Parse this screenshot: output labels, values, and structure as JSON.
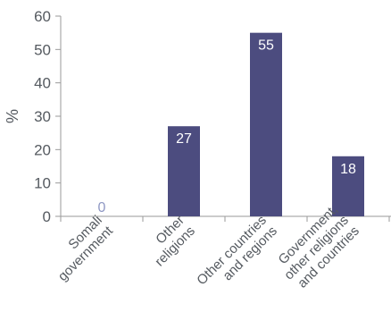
{
  "chart_data": {
    "type": "bar",
    "categories": [
      [
        "Somali",
        "government"
      ],
      [
        "Other",
        "religions"
      ],
      [
        "Other countries",
        "and regions"
      ],
      [
        "Government,",
        "other religions",
        "and countries"
      ]
    ],
    "values": [
      0,
      27,
      55,
      18
    ],
    "data_labels": [
      "0",
      "27",
      "55",
      "18"
    ],
    "ylabel": "%",
    "ylim": [
      0,
      60
    ],
    "yticks": [
      "0",
      "10",
      "20",
      "30",
      "40",
      "50",
      "60"
    ],
    "grid": false,
    "legend": "none"
  },
  "colors": {
    "bar": "#4c4c7f",
    "axis": "#9a9a9a",
    "text": "#555a60",
    "label_inside": "#ffffff",
    "label_zero": "#8f98c4"
  }
}
